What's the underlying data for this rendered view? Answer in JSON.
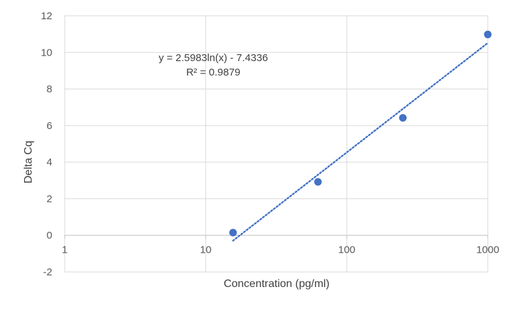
{
  "chart_data": {
    "type": "scatter",
    "title": "",
    "xlabel": "Concentration (pg/ml)",
    "ylabel": "Delta Cq",
    "x_scale": "log",
    "xlim": [
      1,
      1000
    ],
    "ylim": [
      -2,
      12
    ],
    "x_ticks": [
      "1",
      "10",
      "100",
      "1000"
    ],
    "y_ticks": [
      "-2",
      "0",
      "2",
      "4",
      "6",
      "8",
      "10",
      "12"
    ],
    "grid": true,
    "legend": "none",
    "series": [
      {
        "color": "#4472C4",
        "x": [
          15.625,
          62.5,
          250,
          1000
        ],
        "y": [
          0.15,
          2.92,
          6.42,
          10.98
        ]
      }
    ],
    "trendline": {
      "type": "logarithmic",
      "style": "dotted",
      "color": "#4472C4",
      "a": 2.5983,
      "b": -7.4336,
      "x_range": [
        15.625,
        1000
      ],
      "equation": "y = 2.5983ln(x) - 7.4336",
      "r2": "R² = 0.9879"
    }
  }
}
